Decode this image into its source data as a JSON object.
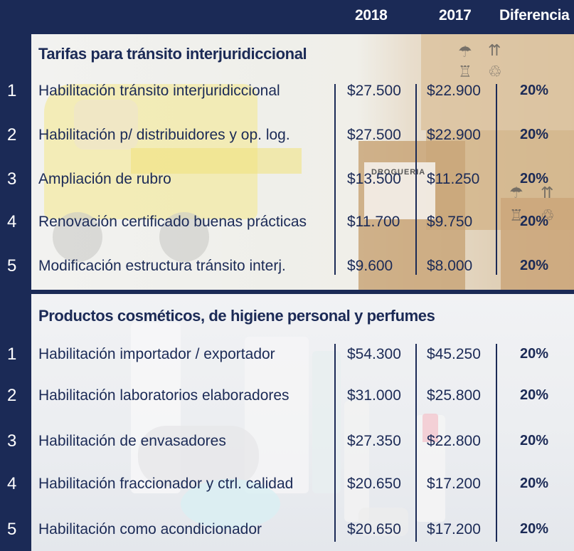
{
  "header": {
    "col_2018": "2018",
    "col_2017": "2017",
    "col_diff": "Diferencia"
  },
  "sections": [
    {
      "title": "Tarifas para tránsito interjuridiccional",
      "rows": [
        {
          "num": "1",
          "label": "Habilitación tránsito interjuridiccional",
          "v2018": "$27.500",
          "v2017": "$22.900",
          "diff": "20%"
        },
        {
          "num": "2",
          "label": "Habilitación p/ distribuidores y op. log.",
          "v2018": "$27.500",
          "v2017": "$22.900",
          "diff": "20%"
        },
        {
          "num": "3",
          "label": "Ampliación de rubro",
          "v2018": "$13.500",
          "v2017": "$11.250",
          "diff": "20%"
        },
        {
          "num": "4",
          "label": "Renovación certificado buenas prácticas",
          "v2018": "$11.700",
          "v2017": "$9.750",
          "diff": "20%"
        },
        {
          "num": "5",
          "label": "Modificación estructura tránsito interj.",
          "v2018": "$9.600",
          "v2017": "$8.000",
          "diff": "20%"
        }
      ]
    },
    {
      "title": "Productos cosméticos, de higiene personal y perfumes",
      "rows": [
        {
          "num": "1",
          "label": "Habilitación importador / exportador",
          "v2018": "$54.300",
          "v2017": "$45.250",
          "diff": "20%"
        },
        {
          "num": "2",
          "label": "Habilitación laboratorios elaboradores",
          "v2018": "$31.000",
          "v2017": "$25.800",
          "diff": "20%"
        },
        {
          "num": "3",
          "label": "Habilitación de envasadores",
          "v2018": "$27.350",
          "v2017": "$22.800",
          "diff": "20%"
        },
        {
          "num": "4",
          "label": "Habilitación fraccionador y ctrl. calidad",
          "v2018": "$20.650",
          "v2017": "$17.200",
          "diff": "20%"
        },
        {
          "num": "5",
          "label": "Habilitación como acondicionador",
          "v2018": "$20.650",
          "v2017": "$17.200",
          "diff": "20%"
        }
      ]
    }
  ],
  "decor": {
    "box_label": "DROGUERIA"
  },
  "colors": {
    "navy": "#1b2a56",
    "panel_light": "#f2f2f0"
  }
}
